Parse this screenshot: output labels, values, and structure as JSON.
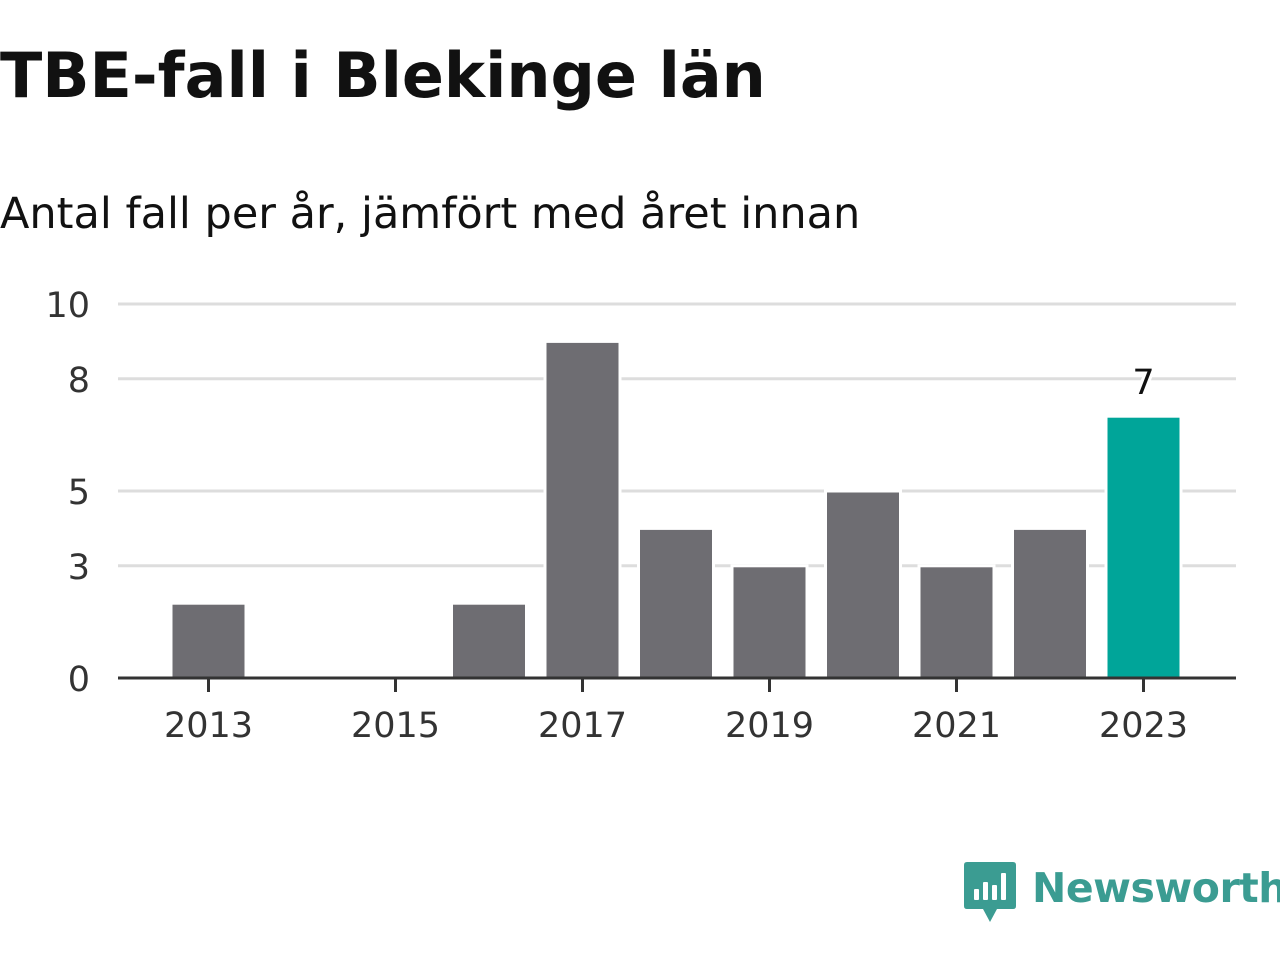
{
  "title": "TBE-fall i Blekinge län",
  "subtitle": "Antal fall per år, jämfört med året innan",
  "brand": {
    "name": "Newsworthy",
    "color": "#3b9c92",
    "icon": "newsworthy-logo-icon"
  },
  "colors": {
    "bar": "#6e6d72",
    "highlight": "#00a599",
    "grid": "#dddddd",
    "axis": "#333333",
    "text": "#333333"
  },
  "chart_data": {
    "type": "bar",
    "x": [
      2013,
      2014,
      2015,
      2016,
      2017,
      2018,
      2019,
      2020,
      2021,
      2022,
      2023
    ],
    "values": [
      2,
      0,
      0,
      2,
      9,
      4,
      3,
      5,
      3,
      4,
      7
    ],
    "y_ticks": [
      0,
      3,
      5,
      8,
      10
    ],
    "y_tick_labels": [
      "0",
      "3",
      "5",
      "8",
      "10"
    ],
    "x_ticks": [
      "2013",
      "2015",
      "2017",
      "2019",
      "2021",
      "2023"
    ],
    "ylim": [
      0,
      10
    ],
    "highlight_year": 2023,
    "data_labels": [
      {
        "x": 2023,
        "label": "7"
      }
    ],
    "grid": true,
    "legend": false
  }
}
